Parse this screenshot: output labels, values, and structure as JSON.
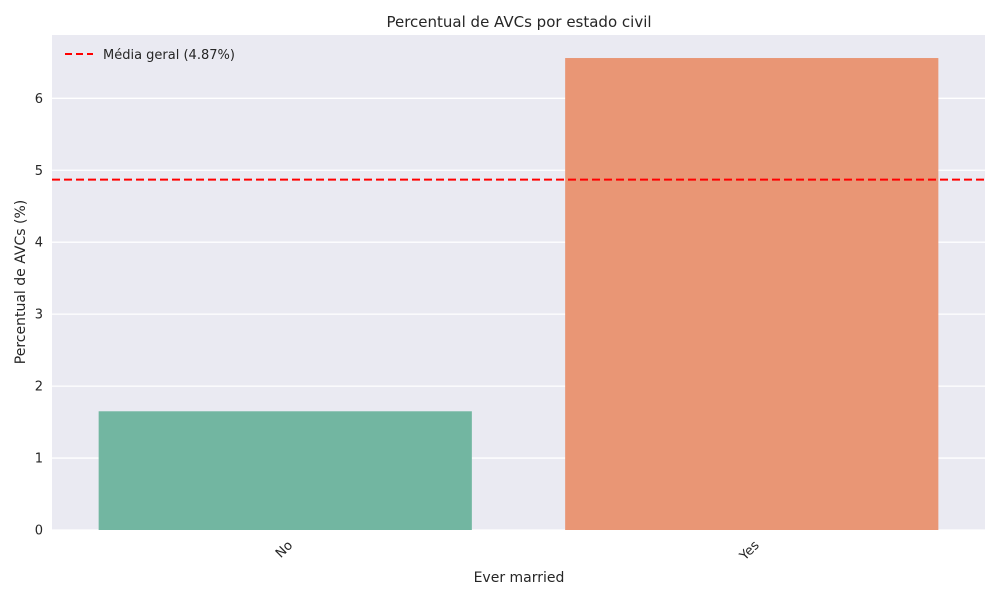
{
  "chart_data": {
    "type": "bar",
    "title": "Percentual de AVCs por estado civil",
    "xlabel": "Ever married",
    "ylabel": "Percentual de AVCs (%)",
    "categories": [
      "No",
      "Yes"
    ],
    "values": [
      1.65,
      6.56
    ],
    "colors": [
      "#72b6a1",
      "#e99675"
    ],
    "ylim": [
      0,
      6.88
    ],
    "yticks": [
      "0",
      "1",
      "2",
      "3",
      "4",
      "5",
      "6"
    ],
    "grid": true,
    "background": "#eaeaf2",
    "reference_line": {
      "value": 4.87,
      "color": "#ff0000",
      "style": "dashed"
    },
    "legend": {
      "placement": "top-left",
      "entries": [
        "Média geral (4.87%)"
      ]
    }
  }
}
